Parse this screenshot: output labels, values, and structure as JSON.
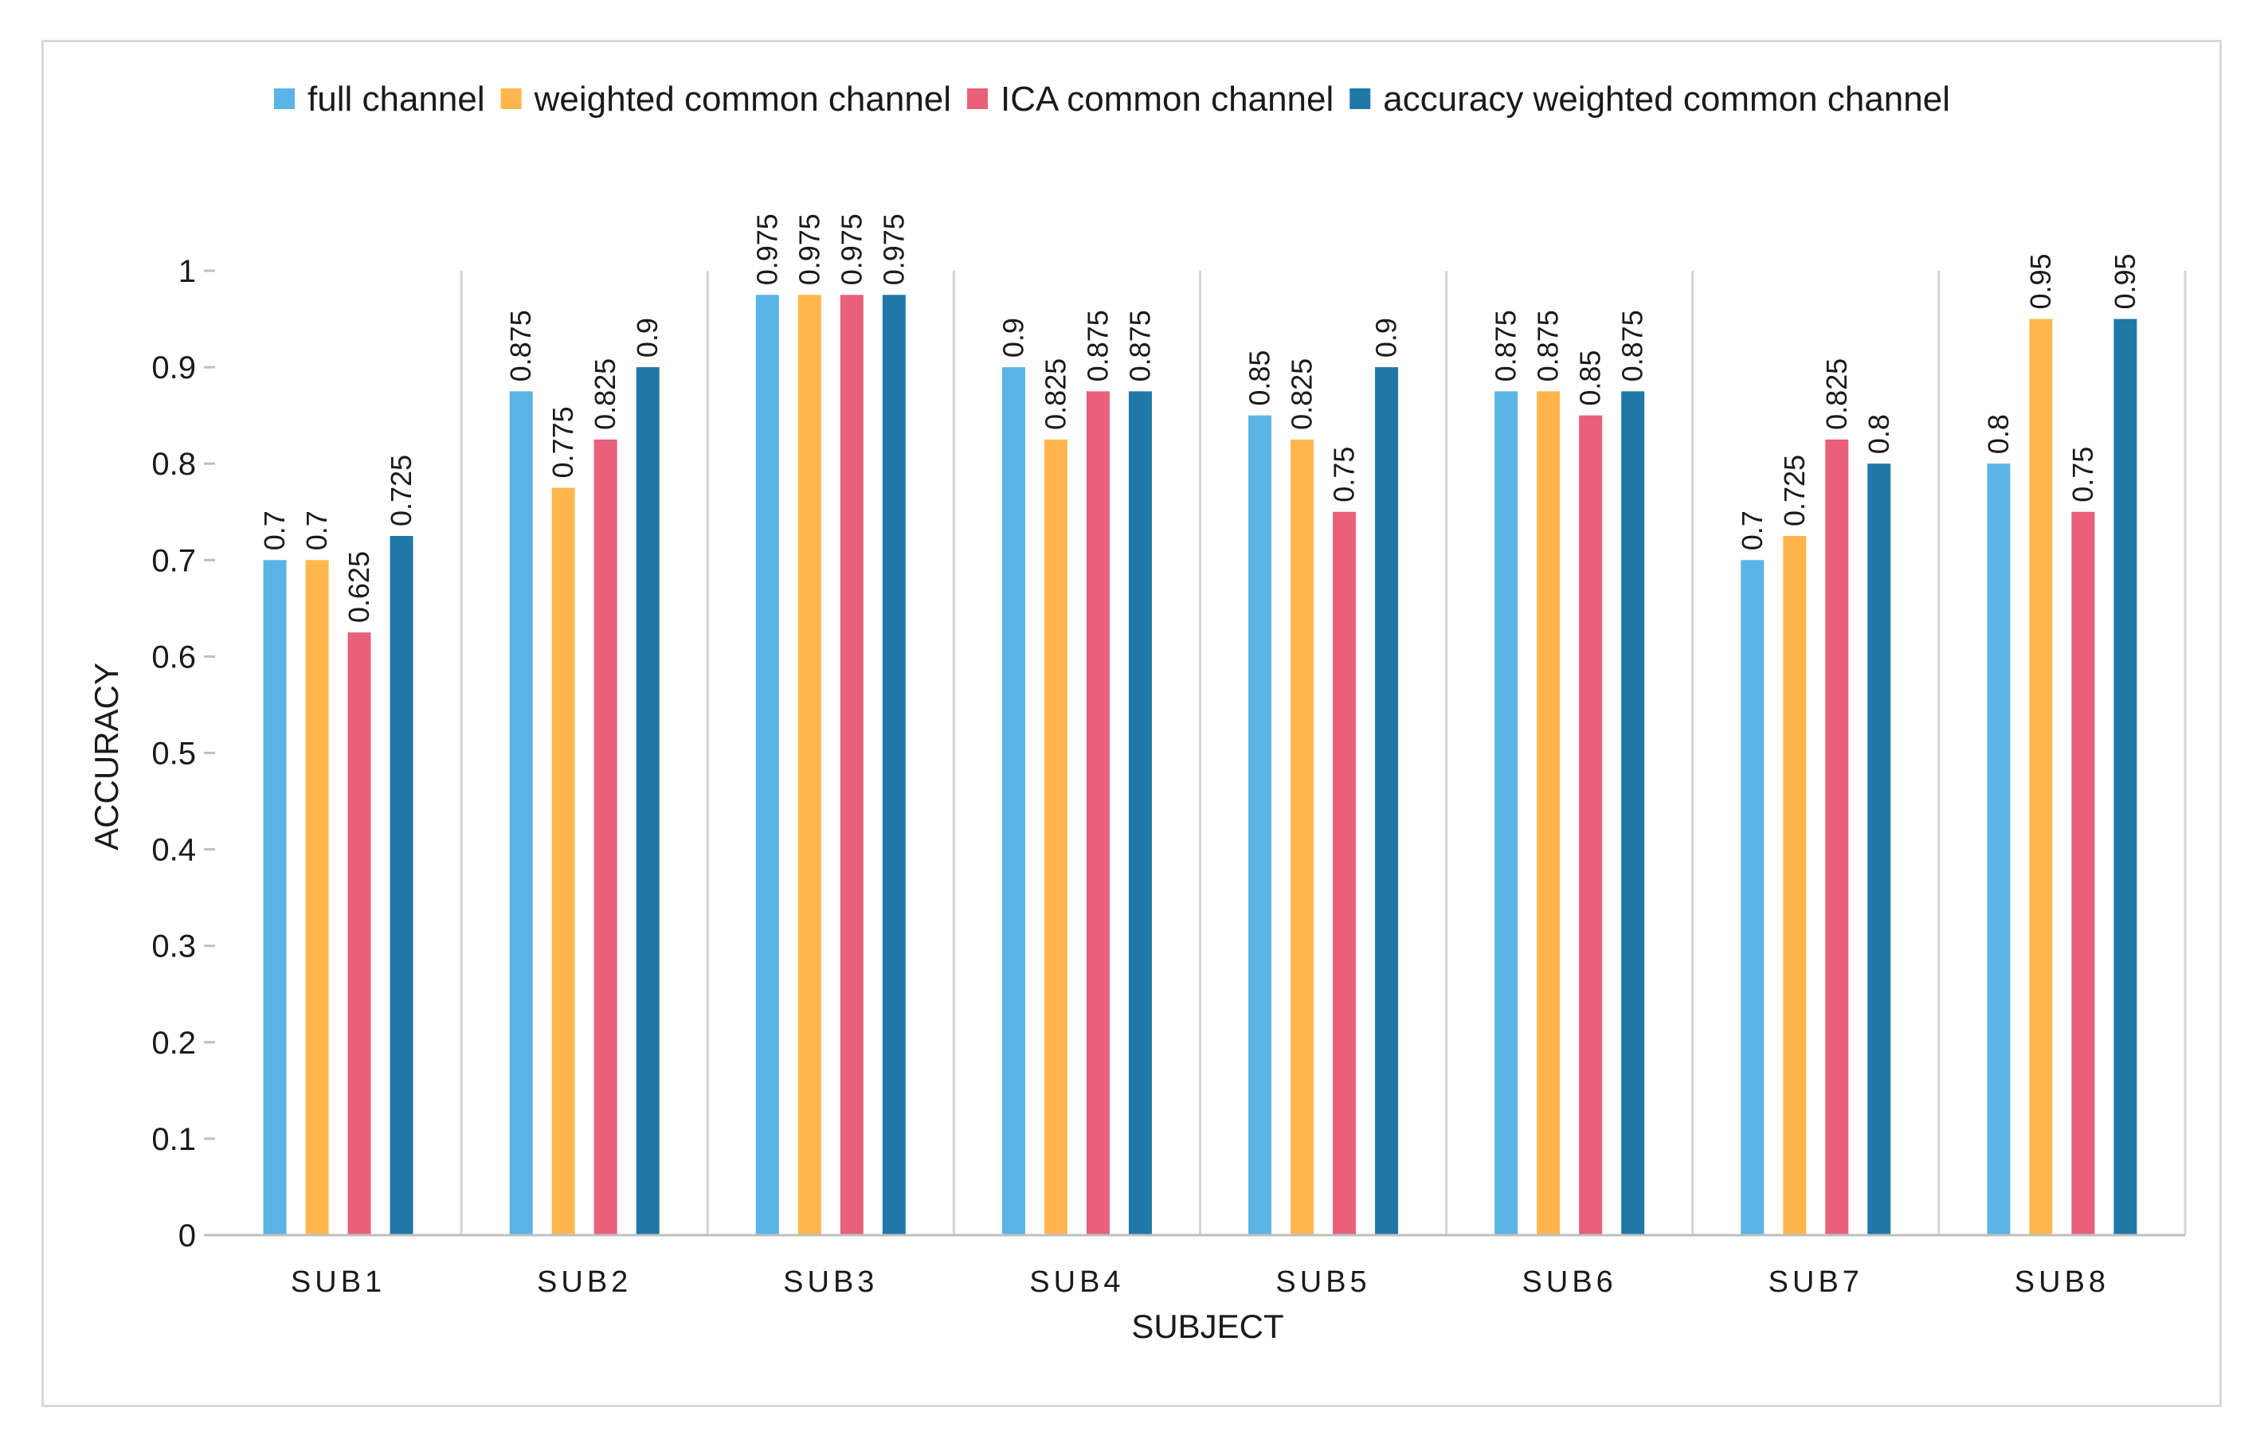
{
  "chart_data": {
    "type": "bar",
    "title": "",
    "xlabel": "SUBJECT",
    "ylabel": "ACCURACY",
    "ylim": [
      0,
      1
    ],
    "yticks": [
      "0",
      "0.1",
      "0.2",
      "0.3",
      "0.4",
      "0.5",
      "0.6",
      "0.7",
      "0.8",
      "0.9",
      "1"
    ],
    "categories": [
      "SUB1",
      "SUB2",
      "SUB3",
      "SUB4",
      "SUB5",
      "SUB6",
      "SUB7",
      "SUB8"
    ],
    "legend_position": "top",
    "series": [
      {
        "name": "full channel",
        "color": "#5ab4e5",
        "values": [
          0.7,
          0.875,
          0.975,
          0.9,
          0.85,
          0.875,
          0.7,
          0.8
        ],
        "labels": [
          "0.7",
          "0.875",
          "0.975",
          "0.9",
          "0.85",
          "0.875",
          "0.7",
          "0.8"
        ]
      },
      {
        "name": "weighted common channel",
        "color": "#ffb74d",
        "values": [
          0.7,
          0.775,
          0.975,
          0.825,
          0.825,
          0.875,
          0.725,
          0.95
        ],
        "labels": [
          "0.7",
          "0.775",
          "0.975",
          "0.825",
          "0.825",
          "0.875",
          "0.725",
          "0.95"
        ]
      },
      {
        "name": "ICA common channel",
        "color": "#e8607a",
        "values": [
          0.625,
          0.825,
          0.975,
          0.875,
          0.75,
          0.85,
          0.825,
          0.75
        ],
        "labels": [
          "0.625",
          "0.825",
          "0.975",
          "0.875",
          "0.75",
          "0.85",
          "0.825",
          "0.75"
        ]
      },
      {
        "name": "accuracy weighted common channel",
        "color": "#1f78a8",
        "values": [
          0.725,
          0.9,
          0.975,
          0.875,
          0.9,
          0.875,
          0.8,
          0.95
        ],
        "labels": [
          "0.725",
          "0.9",
          "0.975",
          "0.875",
          "0.9",
          "0.875",
          "0.8",
          "0.95"
        ]
      }
    ]
  }
}
